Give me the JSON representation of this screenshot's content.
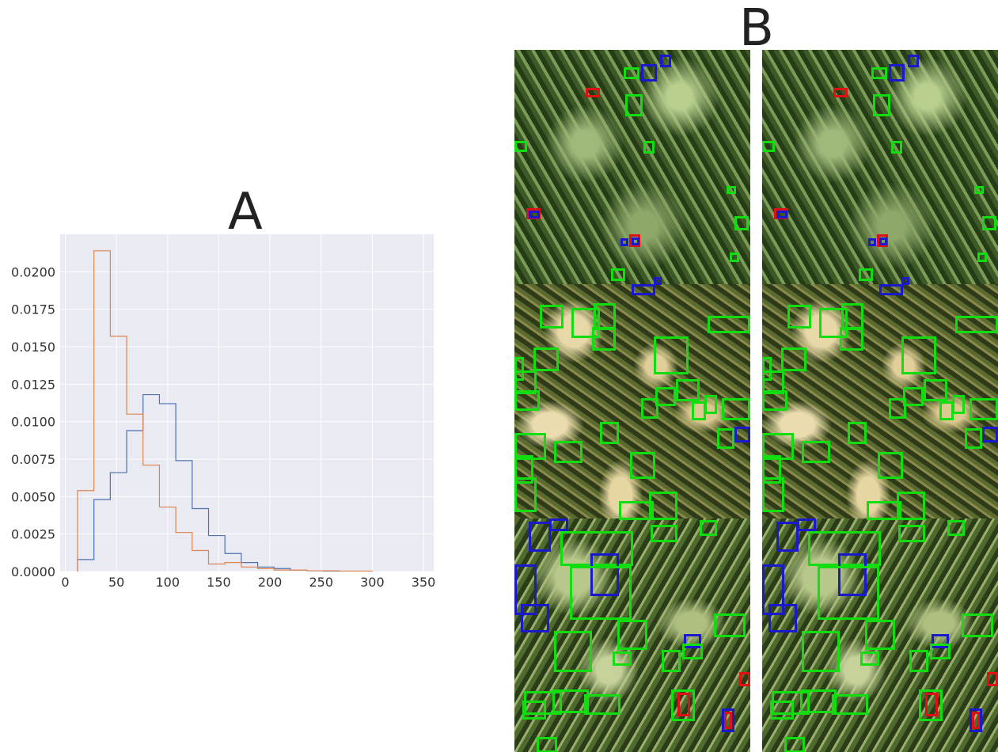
{
  "labels": {
    "panel_a": "A",
    "panel_b": "B"
  },
  "colors": {
    "series_a": "#4c72b0",
    "series_b": "#dd8452",
    "plot_bg": "#eaeaf2",
    "grid": "#ffffff",
    "box_green": "#11dd11",
    "box_blue": "#1a1acc",
    "box_red": "#dd1111"
  },
  "chart_data": {
    "type": "histogram",
    "xlim": [
      -5,
      360
    ],
    "ylim": [
      0,
      0.0225
    ],
    "xticks": [
      0,
      50,
      100,
      150,
      200,
      250,
      300,
      350
    ],
    "yticks": [
      0.0,
      0.0025,
      0.005,
      0.0075,
      0.01,
      0.0125,
      0.015,
      0.0175,
      0.02
    ],
    "ytick_labels": [
      "0.0000",
      "0.0025",
      "0.0050",
      "0.0075",
      "0.0100",
      "0.0125",
      "0.0150",
      "0.0175",
      "0.0200"
    ],
    "grid": true,
    "series": [
      {
        "color": "#4c72b0",
        "edges": [
          12,
          28,
          44,
          60,
          76,
          92,
          108,
          124,
          140,
          156,
          172,
          188,
          204,
          220,
          236,
          252,
          268
        ],
        "values": [
          0.0008,
          0.0048,
          0.0066,
          0.0094,
          0.0118,
          0.0112,
          0.0074,
          0.0042,
          0.0024,
          0.0012,
          0.0006,
          0.0003,
          0.0002,
          0.0001,
          5e-05,
          3e-05
        ]
      },
      {
        "color": "#dd8452",
        "edges": [
          12,
          28,
          44,
          60,
          76,
          92,
          108,
          124,
          140,
          156,
          172,
          188,
          204,
          220,
          236,
          252,
          268,
          284,
          300
        ],
        "values": [
          0.0054,
          0.0214,
          0.0157,
          0.0105,
          0.0071,
          0.0043,
          0.0026,
          0.0014,
          0.0005,
          0.0006,
          0.0003,
          0.0002,
          0.0001,
          0.0001,
          5e-05,
          5e-05,
          3e-05,
          3e-05
        ]
      }
    ]
  }
}
